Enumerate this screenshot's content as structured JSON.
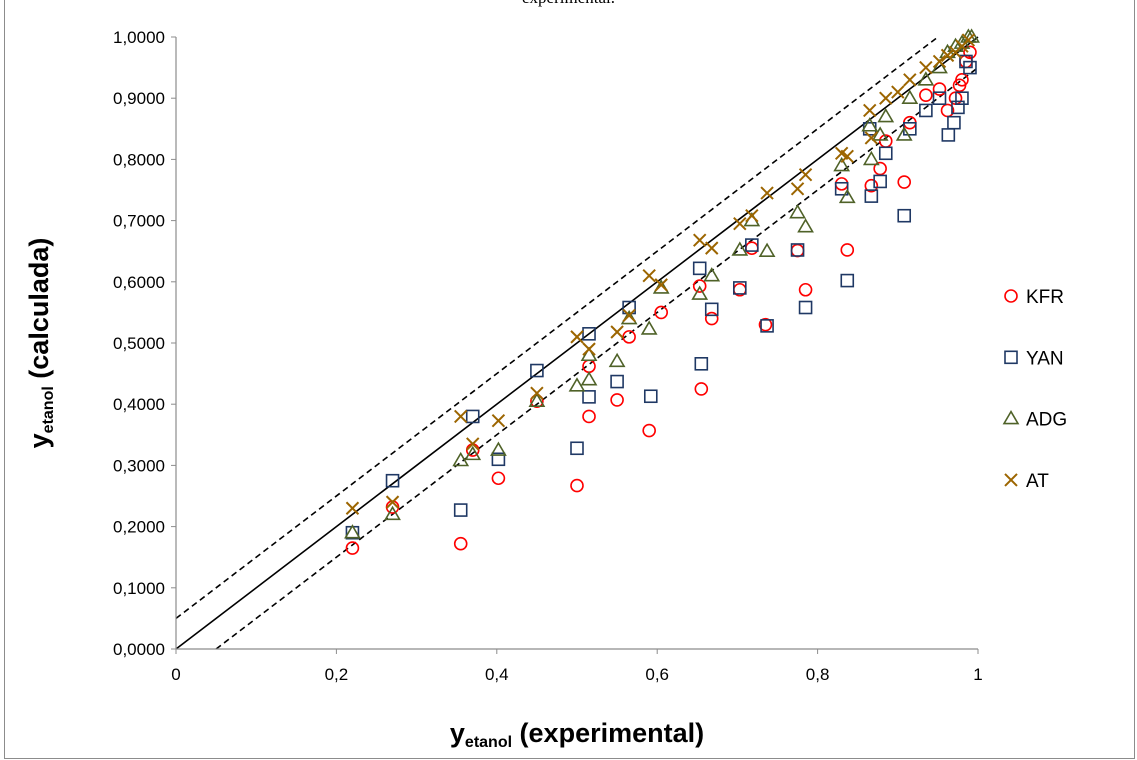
{
  "caption": "experimental.",
  "chart_data": {
    "type": "scatter",
    "xlabel": {
      "main": "y",
      "sub": "etanol",
      "rest": "(experimental)"
    },
    "ylabel": {
      "main": "y",
      "sub": "etanol",
      "rest": "(calculada)"
    },
    "xlim": [
      0,
      1
    ],
    "ylim": [
      0,
      1
    ],
    "x_ticks": [
      "0",
      "0,2",
      "0,4",
      "0,6",
      "0,8",
      "1"
    ],
    "y_ticks": [
      "0,0000",
      "0,1000",
      "0,2000",
      "0,3000",
      "0,4000",
      "0,5000",
      "0,6000",
      "0,7000",
      "0,8000",
      "0,9000",
      "1,0000"
    ],
    "grid": false,
    "legend_position": "right",
    "lines": [
      {
        "style": "solid",
        "points": [
          [
            0,
            0
          ],
          [
            1,
            1
          ]
        ]
      },
      {
        "style": "dashed",
        "points": [
          [
            0,
            0.05
          ],
          [
            0.95,
            1
          ]
        ]
      },
      {
        "style": "dashed",
        "points": [
          [
            0.05,
            0
          ],
          [
            1,
            0.95
          ]
        ]
      }
    ],
    "series": [
      {
        "name": "KFR",
        "marker": "circle",
        "color": "#ff0000",
        "points": [
          [
            0.22,
            0.165
          ],
          [
            0.27,
            0.232
          ],
          [
            0.355,
            0.172
          ],
          [
            0.37,
            0.325
          ],
          [
            0.402,
            0.279
          ],
          [
            0.45,
            0.405
          ],
          [
            0.5,
            0.267
          ],
          [
            0.515,
            0.462
          ],
          [
            0.515,
            0.38
          ],
          [
            0.55,
            0.407
          ],
          [
            0.565,
            0.51
          ],
          [
            0.59,
            0.357
          ],
          [
            0.605,
            0.55
          ],
          [
            0.653,
            0.593
          ],
          [
            0.655,
            0.425
          ],
          [
            0.668,
            0.54
          ],
          [
            0.703,
            0.587
          ],
          [
            0.718,
            0.655
          ],
          [
            0.735,
            0.53
          ],
          [
            0.775,
            0.651
          ],
          [
            0.785,
            0.587
          ],
          [
            0.83,
            0.76
          ],
          [
            0.837,
            0.652
          ],
          [
            0.867,
            0.757
          ],
          [
            0.878,
            0.785
          ],
          [
            0.885,
            0.83
          ],
          [
            0.908,
            0.763
          ],
          [
            0.915,
            0.86
          ],
          [
            0.935,
            0.905
          ],
          [
            0.952,
            0.915
          ],
          [
            0.962,
            0.88
          ],
          [
            0.972,
            0.9
          ],
          [
            0.977,
            0.921
          ],
          [
            0.98,
            0.93
          ],
          [
            0.985,
            0.96
          ],
          [
            0.99,
            0.975
          ]
        ]
      },
      {
        "name": "YAN",
        "marker": "square",
        "color": "#1f3864",
        "points": [
          [
            0.22,
            0.19
          ],
          [
            0.27,
            0.275
          ],
          [
            0.355,
            0.227
          ],
          [
            0.37,
            0.38
          ],
          [
            0.402,
            0.31
          ],
          [
            0.45,
            0.455
          ],
          [
            0.5,
            0.328
          ],
          [
            0.515,
            0.515
          ],
          [
            0.515,
            0.412
          ],
          [
            0.55,
            0.437
          ],
          [
            0.565,
            0.558
          ],
          [
            0.592,
            0.413
          ],
          [
            0.653,
            0.622
          ],
          [
            0.655,
            0.466
          ],
          [
            0.668,
            0.555
          ],
          [
            0.703,
            0.59
          ],
          [
            0.718,
            0.66
          ],
          [
            0.737,
            0.528
          ],
          [
            0.775,
            0.652
          ],
          [
            0.785,
            0.558
          ],
          [
            0.83,
            0.752
          ],
          [
            0.837,
            0.602
          ],
          [
            0.865,
            0.85
          ],
          [
            0.867,
            0.74
          ],
          [
            0.878,
            0.764
          ],
          [
            0.885,
            0.81
          ],
          [
            0.908,
            0.708
          ],
          [
            0.915,
            0.85
          ],
          [
            0.935,
            0.88
          ],
          [
            0.952,
            0.9
          ],
          [
            0.963,
            0.84
          ],
          [
            0.97,
            0.86
          ],
          [
            0.975,
            0.885
          ],
          [
            0.98,
            0.9
          ],
          [
            0.985,
            0.96
          ],
          [
            0.99,
            0.95
          ]
        ]
      },
      {
        "name": "ADG",
        "marker": "triangle",
        "color": "#4f6228",
        "points": [
          [
            0.22,
            0.19
          ],
          [
            0.27,
            0.22
          ],
          [
            0.355,
            0.308
          ],
          [
            0.37,
            0.318
          ],
          [
            0.402,
            0.325
          ],
          [
            0.45,
            0.405
          ],
          [
            0.5,
            0.43
          ],
          [
            0.515,
            0.44
          ],
          [
            0.515,
            0.48
          ],
          [
            0.55,
            0.47
          ],
          [
            0.565,
            0.54
          ],
          [
            0.59,
            0.523
          ],
          [
            0.605,
            0.59
          ],
          [
            0.653,
            0.58
          ],
          [
            0.668,
            0.61
          ],
          [
            0.703,
            0.652
          ],
          [
            0.718,
            0.7
          ],
          [
            0.737,
            0.65
          ],
          [
            0.775,
            0.713
          ],
          [
            0.785,
            0.69
          ],
          [
            0.83,
            0.79
          ],
          [
            0.837,
            0.738
          ],
          [
            0.865,
            0.855
          ],
          [
            0.867,
            0.8
          ],
          [
            0.878,
            0.84
          ],
          [
            0.885,
            0.87
          ],
          [
            0.908,
            0.84
          ],
          [
            0.915,
            0.9
          ],
          [
            0.935,
            0.93
          ],
          [
            0.952,
            0.95
          ],
          [
            0.962,
            0.975
          ],
          [
            0.972,
            0.985
          ],
          [
            0.98,
            0.99
          ],
          [
            0.988,
            1.0
          ],
          [
            0.992,
            1.0
          ]
        ]
      },
      {
        "name": "AT",
        "marker": "x",
        "color": "#9c6500",
        "points": [
          [
            0.22,
            0.23
          ],
          [
            0.27,
            0.24
          ],
          [
            0.355,
            0.38
          ],
          [
            0.37,
            0.335
          ],
          [
            0.402,
            0.373
          ],
          [
            0.45,
            0.418
          ],
          [
            0.5,
            0.51
          ],
          [
            0.515,
            0.49
          ],
          [
            0.55,
            0.518
          ],
          [
            0.565,
            0.545
          ],
          [
            0.59,
            0.61
          ],
          [
            0.605,
            0.595
          ],
          [
            0.653,
            0.668
          ],
          [
            0.668,
            0.655
          ],
          [
            0.703,
            0.695
          ],
          [
            0.718,
            0.708
          ],
          [
            0.737,
            0.745
          ],
          [
            0.775,
            0.752
          ],
          [
            0.785,
            0.775
          ],
          [
            0.83,
            0.81
          ],
          [
            0.837,
            0.805
          ],
          [
            0.865,
            0.88
          ],
          [
            0.867,
            0.835
          ],
          [
            0.885,
            0.9
          ],
          [
            0.9,
            0.91
          ],
          [
            0.915,
            0.93
          ],
          [
            0.935,
            0.95
          ],
          [
            0.952,
            0.96
          ],
          [
            0.962,
            0.97
          ],
          [
            0.972,
            0.975
          ],
          [
            0.98,
            0.985
          ],
          [
            0.988,
            0.995
          ]
        ]
      }
    ]
  }
}
